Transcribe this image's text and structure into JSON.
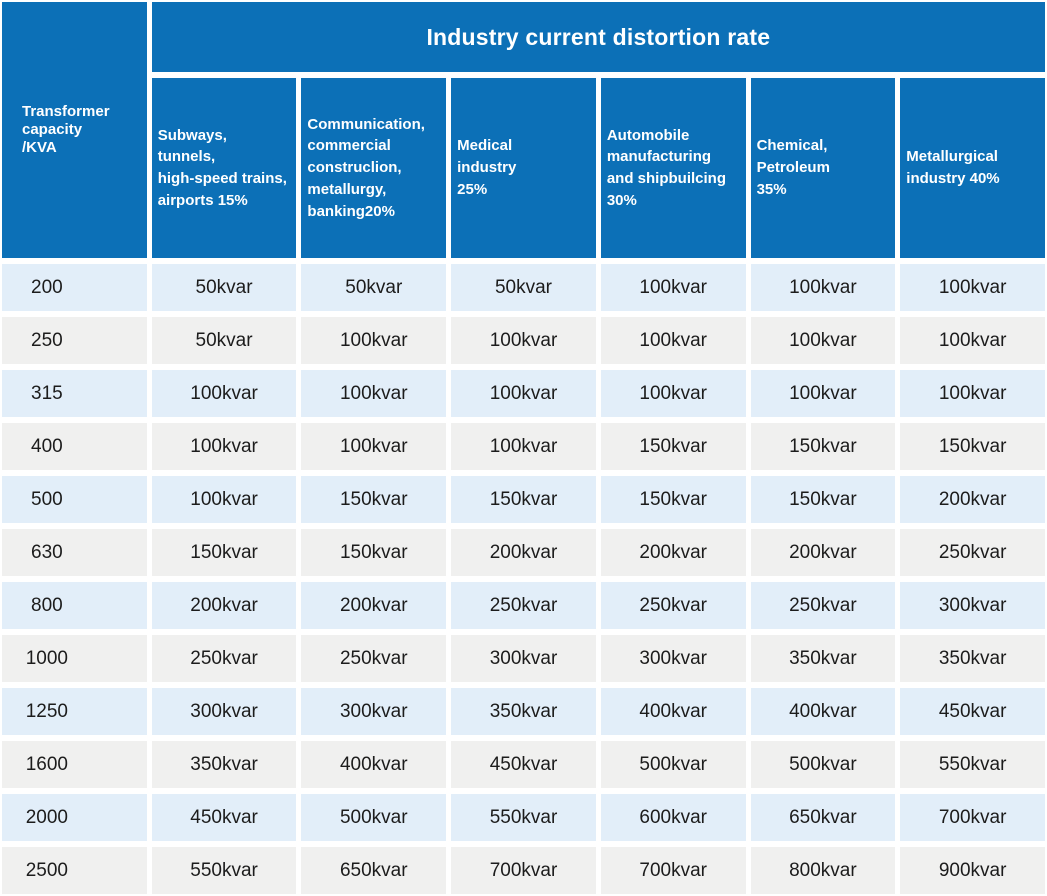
{
  "title": "Industry current distortion rate",
  "corner_header": "Transformer\ncapacity\n/KVA",
  "columns": [
    "Subways,\ntunnels,\nhigh-speed trains,\nairports 15%",
    "Communication,\ncommercial\nconstruclion,\nmetallurgy,\nbanking20%",
    "Medical\nindustry\n25%",
    "Automobile\nmanufacturing\nand shipbuilcing\n30%",
    "Chemical,\nPetroleum\n35%",
    "Metallurgical\nindustry 40%"
  ],
  "unit_suffix": "kvar",
  "colors": {
    "header_blue": "#0c70b7",
    "row_light_blue": "#e2eef9",
    "row_light_gray": "#f0f0ef",
    "header_text": "#ffffff",
    "cell_text": "#1c1c1c"
  },
  "chart_data": {
    "type": "table",
    "title": "Industry current distortion rate",
    "row_header": "Transformer capacity /KVA",
    "column_headers": [
      "Subways, tunnels, high-speed trains, airports 15%",
      "Communication, commercial construclion, metallurgy, banking20%",
      "Medical industry 25%",
      "Automobile manufacturing and shipbuilcing 30%",
      "Chemical, Petroleum 35%",
      "Metallurgical industry 40%"
    ],
    "unit": "kvar",
    "rows": [
      {
        "capacity_kva": "200",
        "values": [
          50,
          50,
          50,
          100,
          100,
          100
        ]
      },
      {
        "capacity_kva": "250",
        "values": [
          50,
          100,
          100,
          100,
          100,
          100
        ]
      },
      {
        "capacity_kva": "315",
        "values": [
          100,
          100,
          100,
          100,
          100,
          100
        ]
      },
      {
        "capacity_kva": "400",
        "values": [
          100,
          100,
          100,
          150,
          150,
          150
        ]
      },
      {
        "capacity_kva": "500",
        "values": [
          100,
          150,
          150,
          150,
          150,
          200
        ]
      },
      {
        "capacity_kva": "630",
        "values": [
          150,
          150,
          200,
          200,
          200,
          250
        ]
      },
      {
        "capacity_kva": "800",
        "values": [
          200,
          200,
          250,
          250,
          250,
          300
        ]
      },
      {
        "capacity_kva": "1000",
        "values": [
          250,
          250,
          300,
          300,
          350,
          350
        ]
      },
      {
        "capacity_kva": "1250",
        "values": [
          300,
          300,
          350,
          400,
          400,
          450
        ]
      },
      {
        "capacity_kva": "1600",
        "values": [
          350,
          400,
          450,
          500,
          500,
          550
        ]
      },
      {
        "capacity_kva": "2000",
        "values": [
          450,
          500,
          550,
          600,
          650,
          700
        ]
      },
      {
        "capacity_kva": "2500",
        "values": [
          550,
          650,
          700,
          700,
          800,
          900
        ]
      }
    ]
  }
}
